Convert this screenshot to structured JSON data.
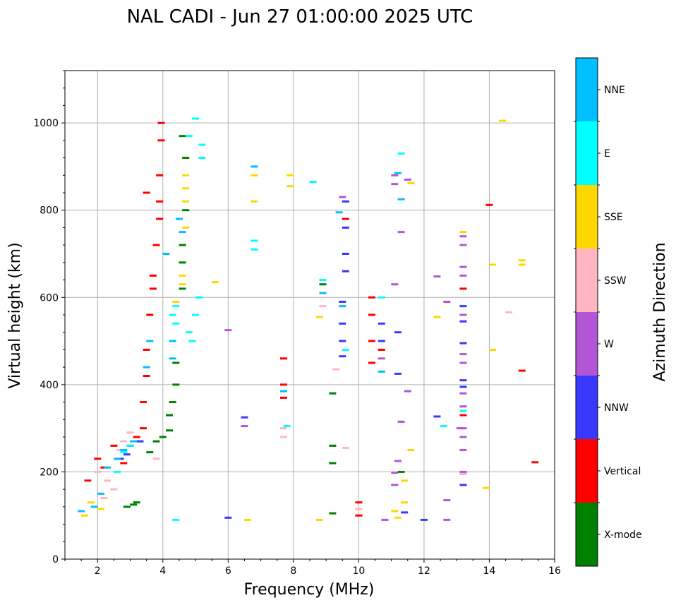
{
  "chart_data": {
    "type": "scatter",
    "title": "NAL CADI - Jun 27 01:00:00 2025 UTC",
    "xlabel": "Frequency (MHz)",
    "ylabel": "Virtual height (km)",
    "xlim": [
      1,
      16
    ],
    "ylim": [
      0,
      1120
    ],
    "xticks": [
      2,
      4,
      6,
      8,
      10,
      12,
      14,
      16
    ],
    "yticks": [
      0,
      200,
      400,
      600,
      800,
      1000
    ],
    "grid": true,
    "colorbar": {
      "title": "Azimuth Direction",
      "categories": [
        {
          "name": "X-mode",
          "color": "#008000"
        },
        {
          "name": "Vertical",
          "color": "#ff0000"
        },
        {
          "name": "NNW",
          "color": "#3838ff"
        },
        {
          "name": "W",
          "color": "#b356d6"
        },
        {
          "name": "SSW",
          "color": "#ffb6c1"
        },
        {
          "name": "SSE",
          "color": "#ffd700"
        },
        {
          "name": "E",
          "color": "#00ffff"
        },
        {
          "name": "NNE",
          "color": "#00bfff"
        }
      ]
    },
    "series": [
      {
        "name": "X-mode",
        "points": [
          [
            2.9,
            120
          ],
          [
            3.1,
            125
          ],
          [
            3.2,
            130
          ],
          [
            3.6,
            245
          ],
          [
            3.8,
            270
          ],
          [
            4.0,
            280
          ],
          [
            4.2,
            295
          ],
          [
            4.2,
            330
          ],
          [
            4.3,
            360
          ],
          [
            4.4,
            400
          ],
          [
            4.4,
            450
          ],
          [
            4.6,
            620
          ],
          [
            4.6,
            680
          ],
          [
            4.6,
            720
          ],
          [
            4.7,
            800
          ],
          [
            4.7,
            920
          ],
          [
            4.6,
            970
          ],
          [
            9.2,
            380
          ],
          [
            9.2,
            260
          ],
          [
            9.2,
            220
          ],
          [
            9.2,
            105
          ],
          [
            8.9,
            630
          ],
          [
            11.3,
            200
          ]
        ]
      },
      {
        "name": "Vertical",
        "points": [
          [
            1.7,
            180
          ],
          [
            2.0,
            230
          ],
          [
            2.2,
            210
          ],
          [
            2.5,
            260
          ],
          [
            2.8,
            220
          ],
          [
            3.0,
            260
          ],
          [
            3.2,
            280
          ],
          [
            3.4,
            300
          ],
          [
            3.4,
            360
          ],
          [
            3.5,
            420
          ],
          [
            3.5,
            480
          ],
          [
            3.6,
            560
          ],
          [
            3.7,
            620
          ],
          [
            3.7,
            650
          ],
          [
            3.8,
            720
          ],
          [
            3.9,
            780
          ],
          [
            3.9,
            820
          ],
          [
            3.9,
            880
          ],
          [
            3.95,
            960
          ],
          [
            3.95,
            1000
          ],
          [
            3.5,
            840
          ],
          [
            7.7,
            460
          ],
          [
            7.7,
            400
          ],
          [
            7.7,
            370
          ],
          [
            9.6,
            780
          ],
          [
            10.4,
            600
          ],
          [
            10.4,
            560
          ],
          [
            10.4,
            500
          ],
          [
            10.4,
            450
          ],
          [
            10.0,
            130
          ],
          [
            10.0,
            100
          ],
          [
            14.0,
            812
          ],
          [
            13.2,
            620
          ],
          [
            15.0,
            432
          ],
          [
            15.4,
            222
          ],
          [
            10.7,
            480
          ],
          [
            13.2,
            330
          ]
        ]
      },
      {
        "name": "NNW",
        "points": [
          [
            2.7,
            230
          ],
          [
            2.9,
            240
          ],
          [
            3.0,
            260
          ],
          [
            3.3,
            270
          ],
          [
            9.6,
            820
          ],
          [
            9.6,
            760
          ],
          [
            9.6,
            700
          ],
          [
            9.6,
            660
          ],
          [
            9.5,
            590
          ],
          [
            9.5,
            540
          ],
          [
            9.5,
            500
          ],
          [
            9.5,
            465
          ],
          [
            10.7,
            540
          ],
          [
            10.7,
            500
          ],
          [
            11.2,
            520
          ],
          [
            11.2,
            425
          ],
          [
            13.2,
            580
          ],
          [
            13.2,
            545
          ],
          [
            13.2,
            495
          ],
          [
            13.2,
            410
          ],
          [
            13.2,
            395
          ],
          [
            12.4,
            327
          ],
          [
            13.2,
            170
          ],
          [
            12.0,
            90
          ],
          [
            11.4,
            107
          ],
          [
            6.5,
            325
          ],
          [
            6.0,
            95
          ]
        ]
      },
      {
        "name": "W",
        "points": [
          [
            9.5,
            830
          ],
          [
            11.1,
            880
          ],
          [
            11.1,
            860
          ],
          [
            11.5,
            870
          ],
          [
            11.3,
            750
          ],
          [
            11.1,
            630
          ],
          [
            12.4,
            648
          ],
          [
            12.7,
            590
          ],
          [
            13.2,
            740
          ],
          [
            13.2,
            720
          ],
          [
            13.2,
            670
          ],
          [
            13.2,
            650
          ],
          [
            13.2,
            560
          ],
          [
            13.2,
            470
          ],
          [
            13.2,
            450
          ],
          [
            13.2,
            380
          ],
          [
            13.2,
            350
          ],
          [
            13.2,
            300
          ],
          [
            13.2,
            280
          ],
          [
            13.2,
            250
          ],
          [
            13.2,
            200
          ],
          [
            13.1,
            300
          ],
          [
            11.5,
            385
          ],
          [
            11.3,
            315
          ],
          [
            11.2,
            225
          ],
          [
            11.1,
            198
          ],
          [
            11.1,
            170
          ],
          [
            12.7,
            135
          ],
          [
            12.7,
            90
          ],
          [
            10.8,
            90
          ],
          [
            6.5,
            305
          ],
          [
            6.0,
            525
          ],
          [
            10.7,
            460
          ]
        ]
      },
      {
        "name": "SSW",
        "points": [
          [
            2.0,
            200
          ],
          [
            2.3,
            180
          ],
          [
            2.5,
            160
          ],
          [
            2.7,
            250
          ],
          [
            2.8,
            270
          ],
          [
            3.0,
            290
          ],
          [
            2.2,
            140
          ],
          [
            7.7,
            300
          ],
          [
            7.7,
            280
          ],
          [
            8.9,
            580
          ],
          [
            9.3,
            435
          ],
          [
            9.6,
            255
          ],
          [
            10.0,
            115
          ],
          [
            13.2,
            195
          ],
          [
            14.6,
            566
          ],
          [
            3.8,
            230
          ]
        ]
      },
      {
        "name": "SSE",
        "points": [
          [
            1.6,
            100
          ],
          [
            1.8,
            130
          ],
          [
            2.1,
            115
          ],
          [
            4.7,
            880
          ],
          [
            4.7,
            850
          ],
          [
            4.7,
            820
          ],
          [
            4.7,
            760
          ],
          [
            4.6,
            650
          ],
          [
            4.6,
            630
          ],
          [
            4.4,
            590
          ],
          [
            6.8,
            880
          ],
          [
            6.8,
            820
          ],
          [
            7.9,
            880
          ],
          [
            7.9,
            855
          ],
          [
            8.8,
            90
          ],
          [
            8.8,
            555
          ],
          [
            11.2,
            95
          ],
          [
            11.1,
            110
          ],
          [
            11.4,
            180
          ],
          [
            11.4,
            130
          ],
          [
            11.6,
            862
          ],
          [
            11.6,
            250
          ],
          [
            12.4,
            555
          ],
          [
            13.2,
            750
          ],
          [
            14.1,
            675
          ],
          [
            14.1,
            480
          ],
          [
            13.9,
            163
          ],
          [
            14.4,
            1005
          ],
          [
            15.0,
            685
          ],
          [
            15.0,
            675
          ],
          [
            6.6,
            90
          ],
          [
            5.6,
            635
          ]
        ]
      },
      {
        "name": "E",
        "points": [
          [
            2.6,
            200
          ],
          [
            2.8,
            245
          ],
          [
            3.0,
            260
          ],
          [
            4.3,
            560
          ],
          [
            4.4,
            540
          ],
          [
            4.4,
            580
          ],
          [
            4.8,
            520
          ],
          [
            4.9,
            500
          ],
          [
            5.0,
            560
          ],
          [
            5.1,
            600
          ],
          [
            5.2,
            950
          ],
          [
            5.2,
            920
          ],
          [
            5.0,
            1010
          ],
          [
            4.8,
            970
          ],
          [
            6.8,
            730
          ],
          [
            6.8,
            710
          ],
          [
            7.8,
            305
          ],
          [
            8.6,
            865
          ],
          [
            9.6,
            480
          ],
          [
            10.7,
            600
          ],
          [
            11.3,
            930
          ],
          [
            4.4,
            90
          ],
          [
            12.6,
            305
          ],
          [
            13.2,
            340
          ],
          [
            8.9,
            640
          ]
        ]
      },
      {
        "name": "NNE",
        "points": [
          [
            1.5,
            110
          ],
          [
            1.9,
            120
          ],
          [
            2.1,
            150
          ],
          [
            2.3,
            210
          ],
          [
            2.6,
            230
          ],
          [
            2.8,
            250
          ],
          [
            3.1,
            270
          ],
          [
            3.5,
            440
          ],
          [
            3.6,
            500
          ],
          [
            4.1,
            700
          ],
          [
            4.3,
            460
          ],
          [
            4.3,
            500
          ],
          [
            4.5,
            780
          ],
          [
            4.6,
            750
          ],
          [
            6.8,
            900
          ],
          [
            7.7,
            385
          ],
          [
            8.9,
            610
          ],
          [
            9.4,
            795
          ],
          [
            9.5,
            580
          ],
          [
            10.7,
            430
          ],
          [
            11.3,
            825
          ],
          [
            11.2,
            885
          ]
        ]
      }
    ]
  }
}
